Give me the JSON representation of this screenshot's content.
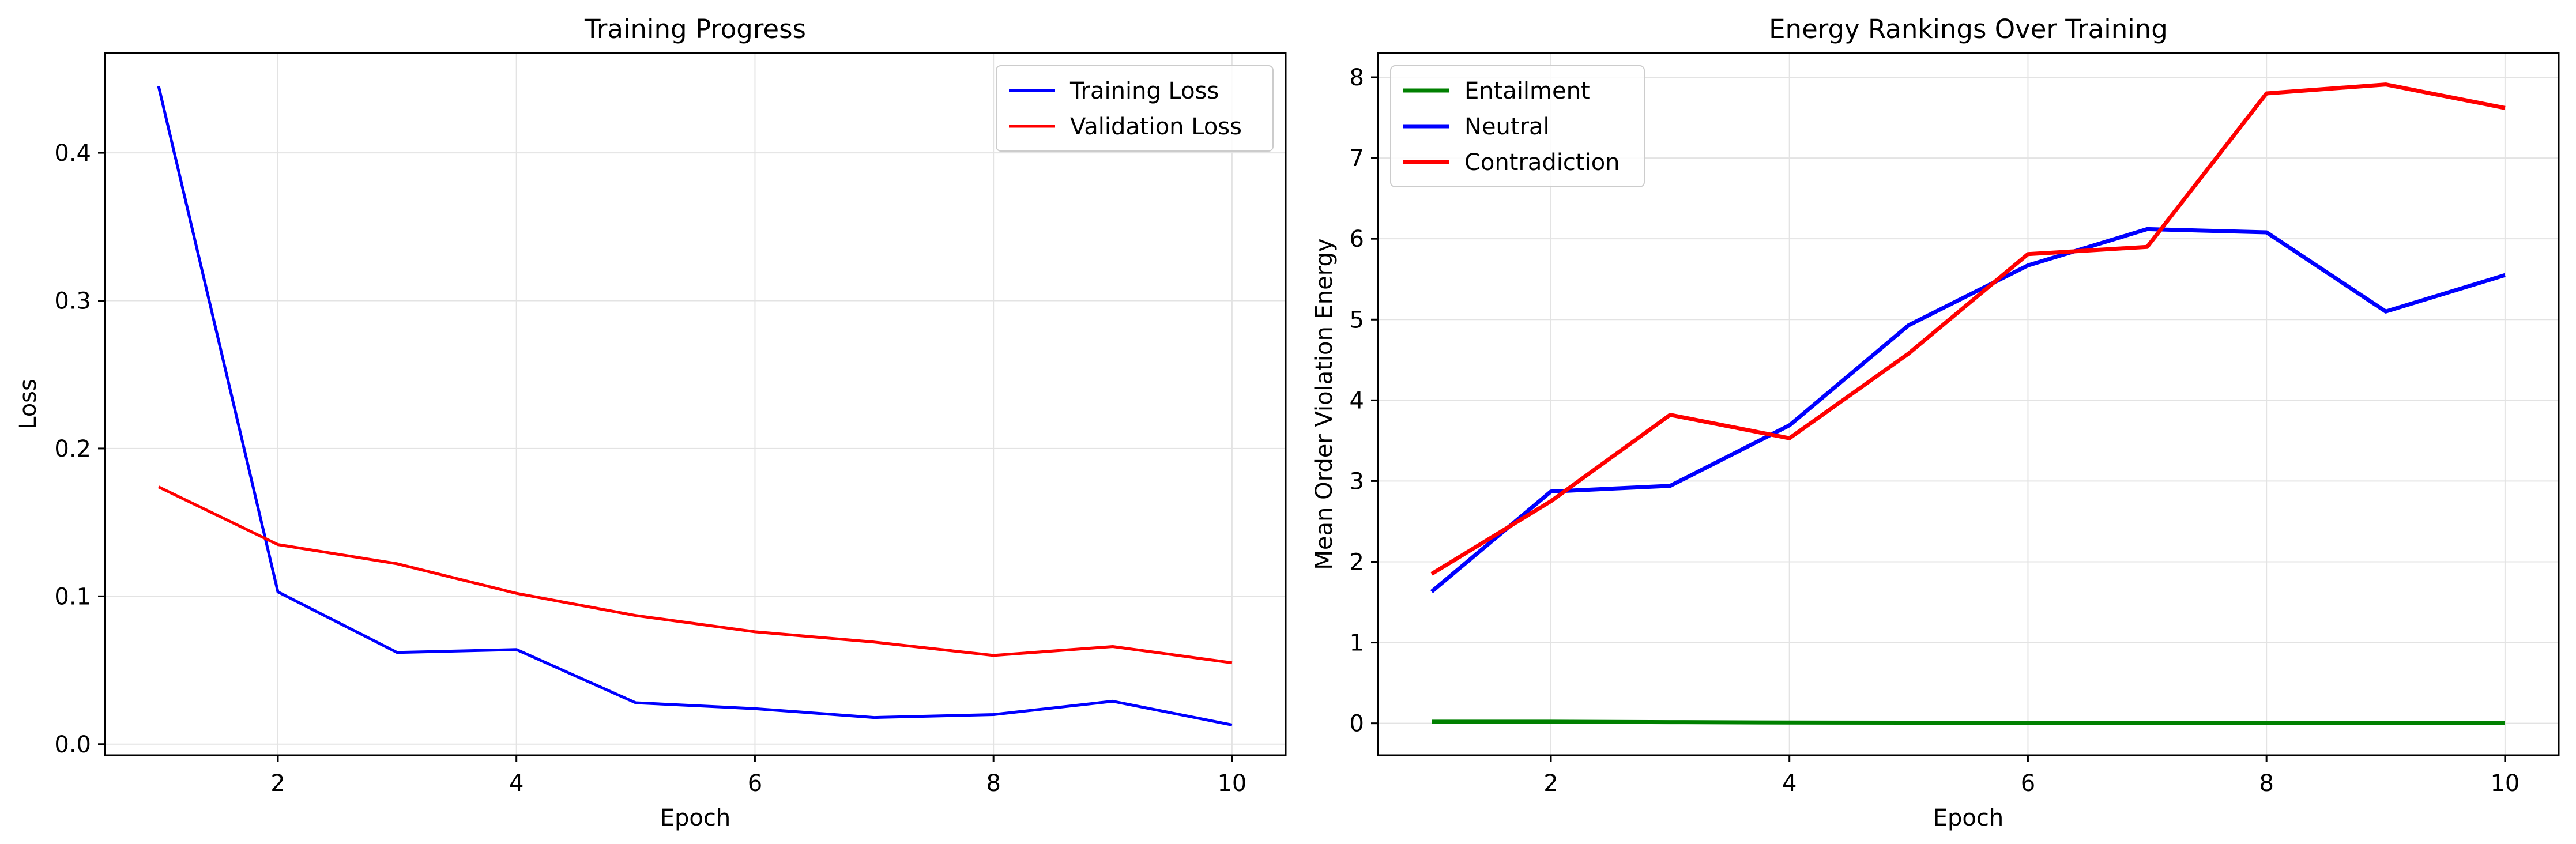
{
  "chart_data": [
    {
      "type": "line",
      "title": "Training Progress",
      "xlabel": "Epoch",
      "ylabel": "Loss",
      "xlim": [
        0.55,
        10.45
      ],
      "ylim": [
        -0.0075,
        0.4675
      ],
      "xticks": [
        2,
        4,
        6,
        8,
        10
      ],
      "yticks": [
        0.0,
        0.1,
        0.2,
        0.3,
        0.4
      ],
      "ytick_labels": [
        "0.0",
        "0.1",
        "0.2",
        "0.3",
        "0.4"
      ],
      "grid": true,
      "legend_position": "upper right",
      "line_width": "thin",
      "x": [
        1,
        2,
        3,
        4,
        5,
        6,
        7,
        8,
        9,
        10
      ],
      "series": [
        {
          "name": "Training Loss",
          "color": "#0000ff",
          "values": [
            0.445,
            0.103,
            0.062,
            0.064,
            0.028,
            0.024,
            0.018,
            0.02,
            0.029,
            0.013
          ]
        },
        {
          "name": "Validation Loss",
          "color": "#ff0000",
          "values": [
            0.174,
            0.135,
            0.122,
            0.102,
            0.087,
            0.076,
            0.069,
            0.06,
            0.066,
            0.055
          ]
        }
      ]
    },
    {
      "type": "line",
      "title": "Energy Rankings Over Training",
      "xlabel": "Epoch",
      "ylabel": "Mean Order Violation Energy",
      "xlim": [
        0.55,
        10.45
      ],
      "ylim": [
        -0.395,
        8.3
      ],
      "xticks": [
        2,
        4,
        6,
        8,
        10
      ],
      "yticks": [
        0,
        1,
        2,
        3,
        4,
        5,
        6,
        7,
        8
      ],
      "ytick_labels": [
        "0",
        "1",
        "2",
        "3",
        "4",
        "5",
        "6",
        "7",
        "8"
      ],
      "grid": true,
      "legend_position": "upper left",
      "line_width": "thick",
      "x": [
        1,
        2,
        3,
        4,
        5,
        6,
        7,
        8,
        9,
        10
      ],
      "series": [
        {
          "name": "Entailment",
          "color": "#008000",
          "values": [
            0.02,
            0.02,
            0.015,
            0.01,
            0.008,
            0.006,
            0.005,
            0.005,
            0.004,
            0.002
          ]
        },
        {
          "name": "Neutral",
          "color": "#0000ff",
          "values": [
            1.63,
            2.87,
            2.94,
            3.69,
            4.93,
            5.67,
            6.12,
            6.08,
            5.1,
            5.55
          ]
        },
        {
          "name": "Contradiction",
          "color": "#ff0000",
          "values": [
            1.85,
            2.75,
            3.82,
            3.53,
            4.58,
            5.81,
            5.9,
            7.8,
            7.91,
            7.62
          ]
        }
      ]
    }
  ]
}
